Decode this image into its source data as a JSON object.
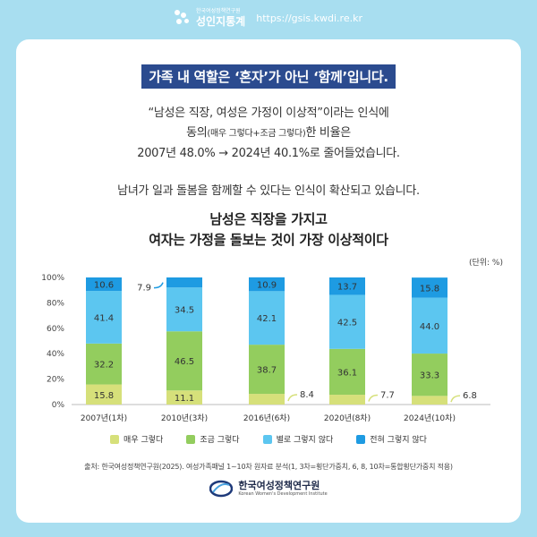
{
  "brand": {
    "org": "한국여성정책연구원",
    "name": "성인지통계",
    "url": "https://gsis.kwdi.re.kr"
  },
  "headline": "가족 내 역할은 ‘혼자’가 아닌 ‘함께’입니다.",
  "intro": {
    "line1": "“남성은 직장, 여성은 가정이 이상적”이라는 인식에",
    "line2_a": "동의",
    "line2_b": "(매우 그렇다+조금 그렇다)",
    "line2_c": "한 비율은",
    "line3": "2007년 48.0% → 2024년 40.1%로 줄어들었습니다."
  },
  "subline": "남녀가 일과 돌봄을 함께할 수 있다는 인식이 확산되고 있습니다.",
  "chart_data": {
    "type": "bar",
    "stacked": true,
    "title": "남성은 직장을 가지고 여자는 가정을 돌보는 것이 가장 이상적이다",
    "title_lines": [
      "남성은 직장을 가지고",
      "여자는 가정을 돌보는 것이 가장 이상적이다"
    ],
    "unit": "(단위: %)",
    "categories": [
      "2007년(1차)",
      "2010년(3차)",
      "2016년(6차)",
      "2020년(8차)",
      "2024년(10차)"
    ],
    "yticks": [
      "0%",
      "20%",
      "40%",
      "60%",
      "80%",
      "100%"
    ],
    "ylim": [
      0,
      100
    ],
    "grid": false,
    "legend_position": "bottom",
    "series": [
      {
        "name": "매우 그렇다",
        "color": "#d6e07a",
        "values": [
          15.8,
          11.1,
          8.4,
          7.7,
          6.8
        ],
        "labels": [
          "15.8",
          "11.1",
          "8.4",
          "7.7",
          "6.8"
        ]
      },
      {
        "name": "조금 그렇다",
        "color": "#93cd5e",
        "values": [
          32.2,
          46.5,
          38.7,
          36.1,
          33.3
        ],
        "labels": [
          "32.2",
          "46.5",
          "38.7",
          "36.1",
          "33.3"
        ]
      },
      {
        "name": "별로 그렇지 않다",
        "color": "#5cc6f0",
        "values": [
          41.4,
          34.5,
          42.1,
          42.5,
          44.0
        ],
        "labels": [
          "41.4",
          "34.5",
          "42.1",
          "42.5",
          "44.0"
        ]
      },
      {
        "name": "전혀 그렇지 않다",
        "color": "#1e9be2",
        "values": [
          10.6,
          7.9,
          10.9,
          13.7,
          15.8
        ],
        "labels": [
          "10.6",
          "7.9",
          "10.9",
          "13.7",
          "15.8"
        ]
      }
    ]
  },
  "source": "출처: 한국여성정책연구원(2025). 여성가족패널 1~10차 원자료 분석(1, 3차=횡단가중치, 6, 8, 10차=통합횡단가중치 적용)",
  "footer": {
    "name": "한국여성정책연구원",
    "en": "Korean Women's Development Institute"
  }
}
